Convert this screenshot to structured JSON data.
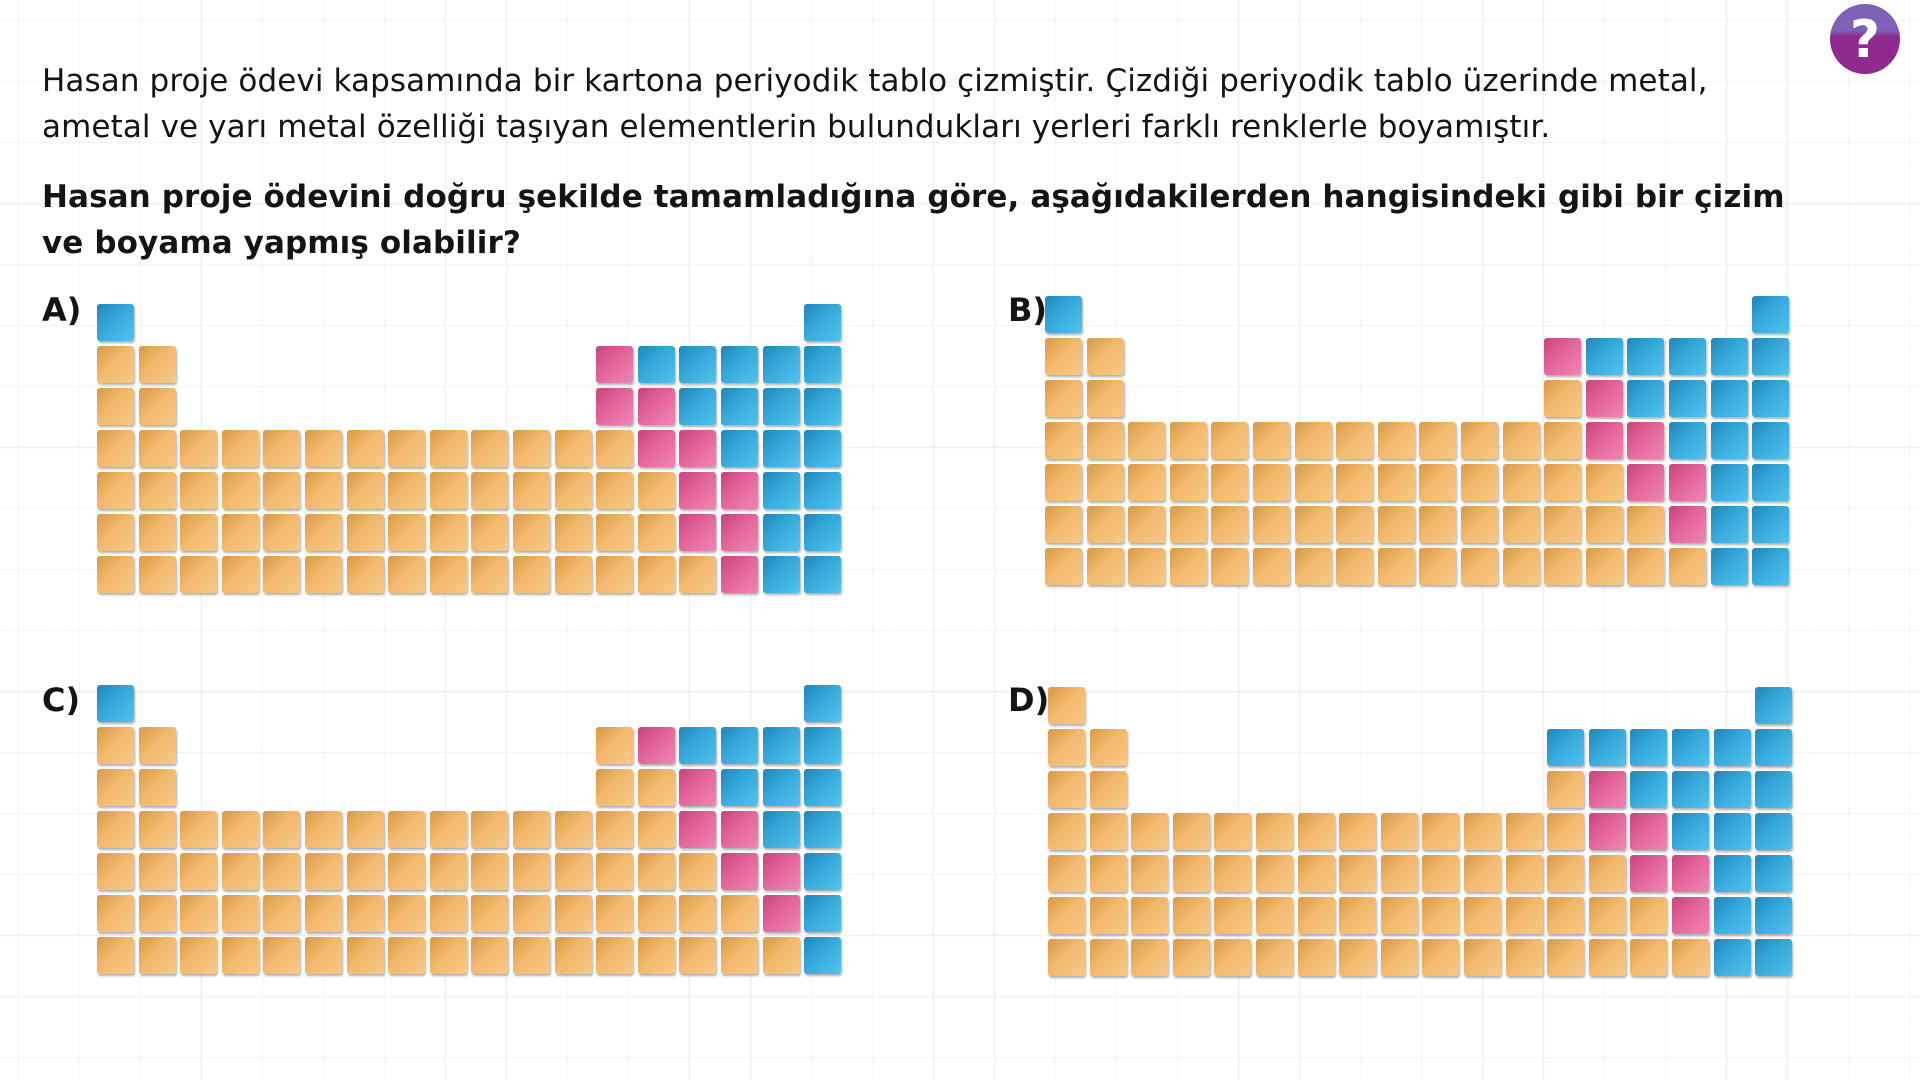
{
  "question": {
    "stem": "Hasan proje ödevi kapsamında bir kartona periyodik tablo çizmiştir. Çizdiği periyodik tablo üzerinde metal, ametal ve yarı metal özelliği taşıyan elementlerin bulundukları yerleri farklı renklerle boyamıştır.",
    "prompt": "Hasan proje ödevini doğru şekilde tamamladığına göre, aşağıdakilerden hangisindeki gibi bir çizim ve boyama yapmış olabilir?"
  },
  "help_icon": {
    "glyph": "?",
    "icon": "question-mark-icon",
    "colors": {
      "top": "#7d62b5",
      "bottom": "#8f2b8e"
    }
  },
  "legend_colors": {
    "O": "#f2b86c",
    "P": "#e3649a",
    "B": "#36a8da"
  },
  "cell_key": {
    "O": "metal",
    "P": "semimetal",
    "B": "nonmetal",
    ".": "empty"
  },
  "options": [
    {
      "label": "A)",
      "rows": [
        "B................B",
        "OO..........PBBBBB",
        "OO..........PPBBBB",
        "OOOOOOOOOOOOOPPBBB",
        "OOOOOOOOOOOOOOPPBB",
        "OOOOOOOOOOOOOOPPBB",
        "OOOOOOOOOOOOOOOPBB"
      ]
    },
    {
      "label": "B)",
      "rows": [
        "B................B",
        "OO..........PBBBBB",
        "OO..........OPBBBB",
        "OOOOOOOOOOOOOPPBBB",
        "OOOOOOOOOOOOOOPPBB",
        "OOOOOOOOOOOOOOOPBB",
        "OOOOOOOOOOOOOOOOBB"
      ]
    },
    {
      "label": "C)",
      "rows": [
        "B................B",
        "OO..........OPBBBB",
        "OO..........OOPBBB",
        "OOOOOOOOOOOOOOPPBB",
        "OOOOOOOOOOOOOOOPPB",
        "OOOOOOOOOOOOOOOOPB",
        "OOOOOOOOOOOOOOOOOB"
      ]
    },
    {
      "label": "D)",
      "rows": [
        "O................B",
        "OO..........BBBBBB",
        "OO..........OPBBBB",
        "OOOOOOOOOOOOOPPBBB",
        "OOOOOOOOOOOOOOPPBB",
        "OOOOOOOOOOOOOOOPBB",
        "OOOOOOOOOOOOOOOOBB"
      ]
    }
  ]
}
